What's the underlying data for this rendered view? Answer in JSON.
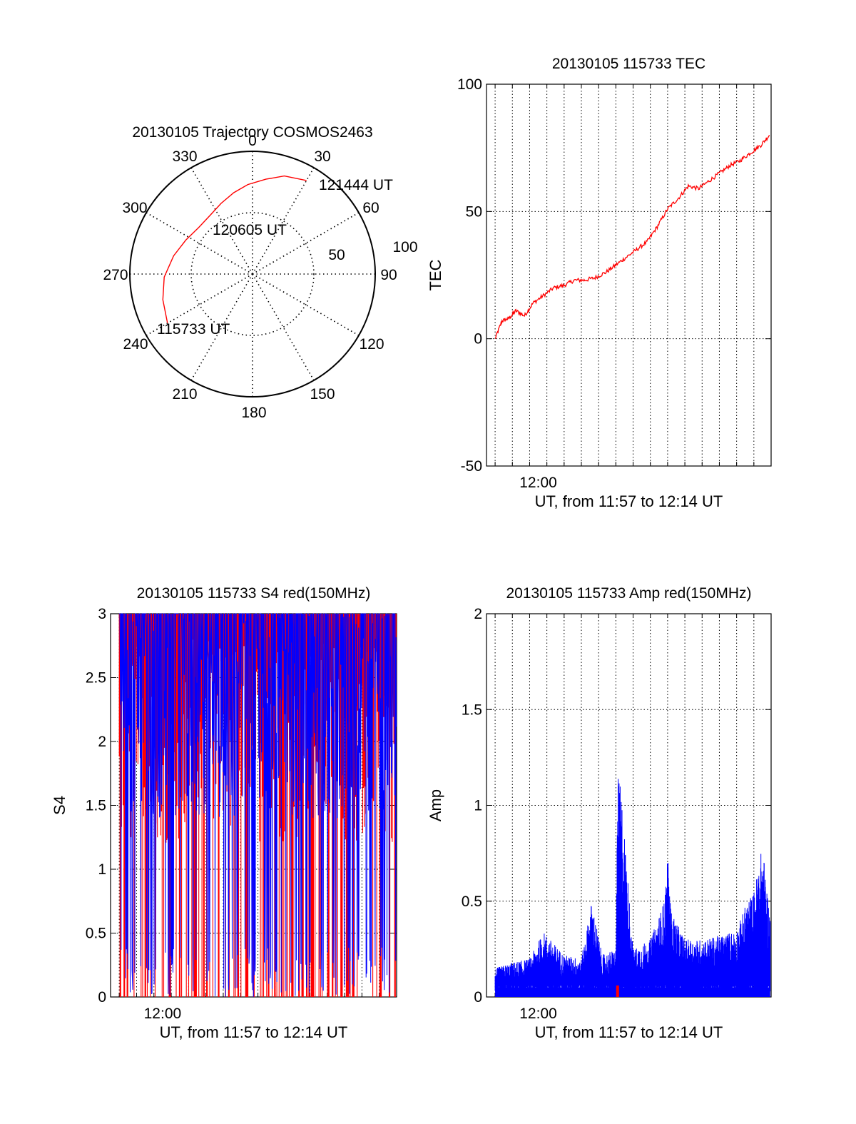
{
  "colors": {
    "red": "#ff0000",
    "blue": "#0000ff",
    "axis": "#000000",
    "grid": "#000000"
  },
  "chart_data": [
    {
      "id": "trajectory",
      "type": "polar",
      "title": "20130105 Trajectory COSMOS2463",
      "azimuth_labels": [
        "0",
        "30",
        "60",
        "90",
        "120",
        "150",
        "180",
        "210",
        "240",
        "270",
        "300",
        "330"
      ],
      "radial_labels": [
        "50",
        "100"
      ],
      "rlim": [
        0,
        100
      ],
      "grid": true,
      "track": {
        "color": "#ff0000",
        "points": [
          {
            "az": 240,
            "r": 80
          },
          {
            "az": 254,
            "r": 76
          },
          {
            "az": 268,
            "r": 72
          },
          {
            "az": 283,
            "r": 66
          },
          {
            "az": 297,
            "r": 61
          },
          {
            "az": 311,
            "r": 58
          },
          {
            "az": 324,
            "r": 59
          },
          {
            "az": 336,
            "r": 63
          },
          {
            "az": 347,
            "r": 68
          },
          {
            "az": 357,
            "r": 73
          },
          {
            "az": 8,
            "r": 78
          },
          {
            "az": 18,
            "r": 84
          },
          {
            "az": 30,
            "r": 88
          }
        ],
        "labels": [
          {
            "text": "115733 UT",
            "az": 240,
            "r": 80
          },
          {
            "text": "120605 UT",
            "az": 304,
            "r": 59
          },
          {
            "text": "121444 UT",
            "az": 30,
            "r": 88
          }
        ]
      }
    },
    {
      "id": "tec",
      "type": "line",
      "title": "20130105 115733 TEC",
      "ylabel": "TEC",
      "xlabel": "UT, from 11:57 to 12:14 UT",
      "xtick_label": "12:00",
      "ylim": [
        -50,
        100
      ],
      "yticks": [
        -50,
        0,
        50,
        100
      ],
      "xlim_minutes": [
        11.5,
        28.0
      ],
      "grid": true,
      "series": [
        {
          "color": "#ff0000",
          "x": [
            12.0,
            12.4,
            12.8,
            13.2,
            13.7,
            14.2,
            14.8,
            15.4,
            16.0,
            16.6,
            17.2,
            17.8,
            18.4,
            19.0,
            19.6,
            20.2,
            20.8,
            21.4,
            22.0,
            22.6,
            23.2,
            23.8,
            24.4,
            25.0,
            25.6,
            26.2,
            26.8,
            27.4,
            27.9
          ],
          "y": [
            0,
            7,
            8,
            11,
            9,
            14,
            17,
            20,
            21,
            23,
            23,
            24,
            26,
            29,
            32,
            35,
            38,
            44,
            51,
            55,
            60,
            59,
            62,
            65,
            68,
            70,
            73,
            76,
            80
          ]
        }
      ]
    },
    {
      "id": "s4",
      "type": "line",
      "title": "20130105 115733 S4 red(150MHz)",
      "ylabel": "S4",
      "xlabel": "UT, from 11:57 to 12:14 UT",
      "xtick_label": "12:00",
      "ylim": [
        0,
        3
      ],
      "yticks": [
        0,
        0.5,
        1,
        1.5,
        2,
        2.5,
        3
      ],
      "xlim_minutes": [
        11.5,
        28.0
      ],
      "grid": true,
      "series": [
        {
          "color": "#ff0000",
          "note_values": "dense S4 trace, values frequently clipped at 3"
        },
        {
          "color": "#0000ff",
          "note_values": "dense S4 trace, values frequently clipped at 3"
        }
      ]
    },
    {
      "id": "amp",
      "type": "line",
      "title": "20130105 115733 Amp red(150MHz)",
      "ylabel": "Amp",
      "xlabel": "UT, from 11:57 to 12:14 UT",
      "xtick_label": "12:00",
      "ylim": [
        0,
        2
      ],
      "yticks": [
        0,
        0.5,
        1,
        1.5,
        2
      ],
      "xlim_minutes": [
        11.5,
        28.0
      ],
      "grid": true,
      "series": [
        {
          "color": "#0000ff",
          "envelope_x": [
            12.0,
            13.0,
            14.0,
            14.8,
            16.0,
            17.0,
            17.6,
            18.2,
            19.0,
            19.1,
            19.3,
            20.0,
            21.0,
            21.8,
            22.0,
            22.2,
            23.0,
            24.0,
            25.0,
            26.0,
            26.6,
            27.0,
            27.5,
            27.9
          ],
          "envelope_y": [
            0.15,
            0.18,
            0.2,
            0.34,
            0.22,
            0.2,
            0.5,
            0.22,
            0.25,
            1.15,
            1.1,
            0.25,
            0.3,
            0.5,
            0.75,
            0.45,
            0.3,
            0.3,
            0.32,
            0.35,
            0.5,
            0.55,
            0.8,
            0.45
          ]
        },
        {
          "color": "#ff0000",
          "x": [
            19.1
          ],
          "y": [
            0.06
          ]
        }
      ]
    }
  ]
}
